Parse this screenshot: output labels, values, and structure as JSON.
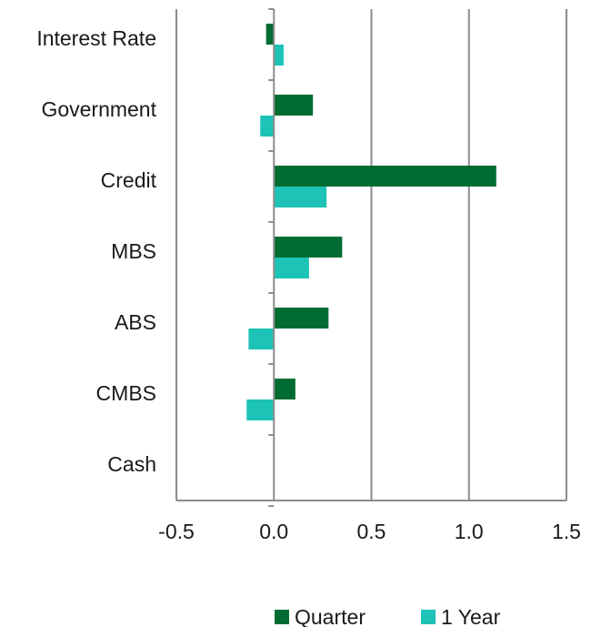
{
  "chart_data": {
    "type": "bar",
    "orientation": "horizontal",
    "categories": [
      "Interest Rate",
      "Government",
      "Credit",
      "MBS",
      "ABS",
      "CMBS",
      "Cash"
    ],
    "series": [
      {
        "name": "Quarter",
        "color": "#006c32",
        "values": [
          -0.04,
          0.2,
          1.14,
          0.35,
          0.28,
          0.11,
          0.0
        ]
      },
      {
        "name": "1 Year",
        "color": "#1cc3b6",
        "values": [
          0.05,
          -0.07,
          0.27,
          0.18,
          -0.13,
          -0.14,
          0.0
        ]
      }
    ],
    "xlim": [
      -0.5,
      1.5
    ],
    "xticks": [
      "-0.5",
      "0.0",
      "0.5",
      "1.0",
      "1.5"
    ],
    "xtick_values": [
      -0.5,
      0,
      0.5,
      1.0,
      1.5
    ],
    "grid": "vertical",
    "legend": "bottom",
    "title": "",
    "xlabel": "",
    "ylabel": ""
  }
}
